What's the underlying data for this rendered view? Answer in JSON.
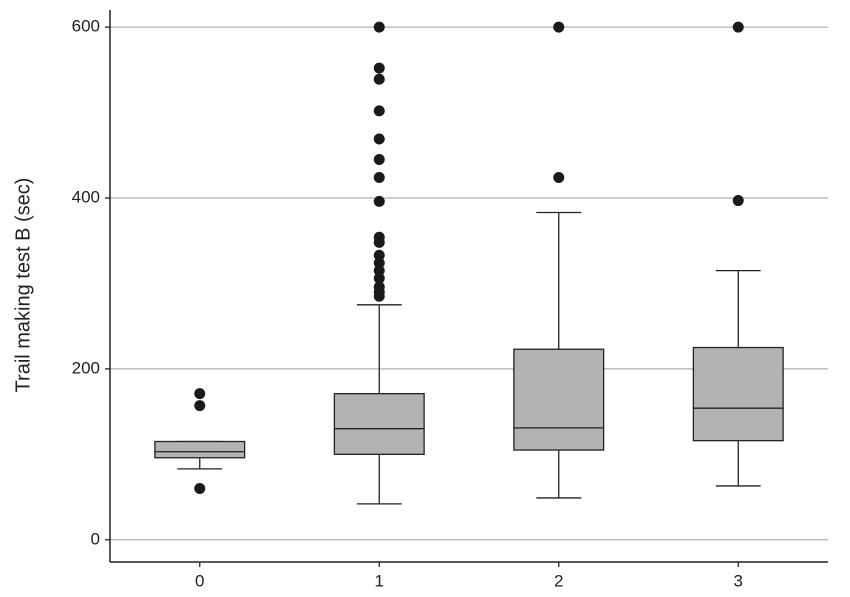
{
  "chart_data": {
    "type": "box",
    "ylabel": "Trail making test B (sec)",
    "categories": [
      "0",
      "1",
      "2",
      "3"
    ],
    "boxes": [
      {
        "min": 83,
        "q1": 96,
        "median": 103,
        "q3": 115,
        "max": 115,
        "outliers": [
          171,
          157,
          60
        ]
      },
      {
        "min": 42,
        "q1": 100,
        "median": 130,
        "q3": 171,
        "max": 275,
        "outliers": [
          600,
          552,
          539,
          502,
          469,
          445,
          424,
          396,
          354,
          348,
          333,
          324,
          315,
          306,
          296,
          290,
          285
        ]
      },
      {
        "min": 49,
        "q1": 105,
        "median": 131,
        "q3": 223,
        "max": 383,
        "outliers": [
          600,
          424
        ]
      },
      {
        "min": 63,
        "q1": 116,
        "median": 154,
        "q3": 225,
        "max": 315,
        "outliers": [
          600,
          397
        ]
      }
    ],
    "color": "#b3b3b3",
    "outlier_color": "#1a1a1a",
    "ylim": [
      -26,
      620
    ],
    "yticks": [
      0,
      200,
      400,
      600
    ],
    "grid": true
  }
}
